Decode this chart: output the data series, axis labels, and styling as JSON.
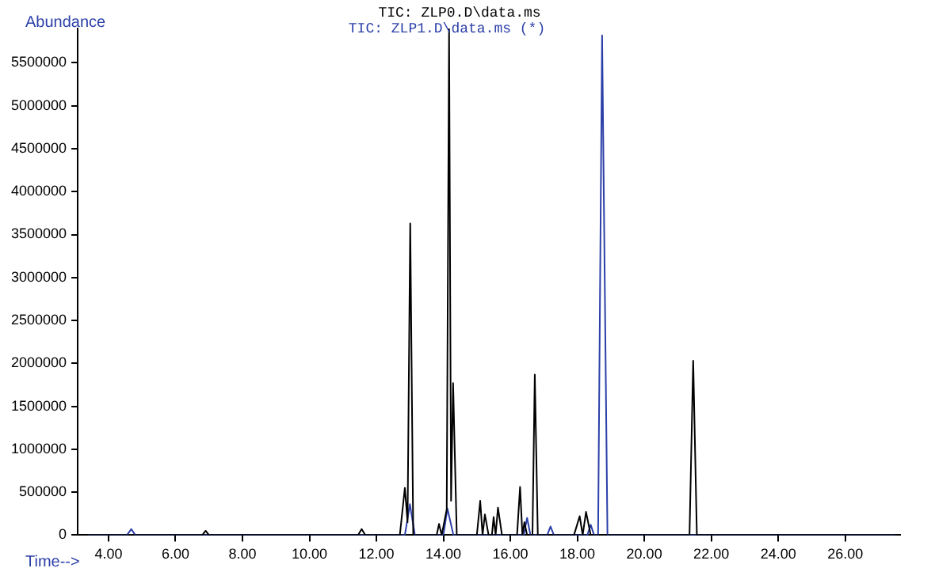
{
  "chart_data": {
    "type": "line",
    "xlabel": "Time-->",
    "ylabel": "Abundance",
    "legend": "top",
    "marker": "none",
    "line_style": "solid",
    "xlim": [
      3.08,
      27.64
    ],
    "ylim": [
      0,
      5900000
    ],
    "xticks": [
      {
        "value": 4,
        "label": "4.00"
      },
      {
        "value": 6,
        "label": "6.00"
      },
      {
        "value": 8,
        "label": "8.00"
      },
      {
        "value": 10,
        "label": "10.00"
      },
      {
        "value": 12,
        "label": "12.00"
      },
      {
        "value": 14,
        "label": "14.00"
      },
      {
        "value": 16,
        "label": "16.00"
      },
      {
        "value": 18,
        "label": "18.00"
      },
      {
        "value": 20,
        "label": "20.00"
      },
      {
        "value": 22,
        "label": "22.00"
      },
      {
        "value": 24,
        "label": "24.00"
      },
      {
        "value": 26,
        "label": "26.00"
      }
    ],
    "yticks": [
      0,
      500000,
      1000000,
      1500000,
      2000000,
      2500000,
      3000000,
      3500000,
      4000000,
      4500000,
      5000000,
      5500000
    ],
    "series": [
      {
        "name": "TIC: ZLP0.D\\data.ms",
        "color": "#000000",
        "x": [
          3.4,
          6.8,
          6.9,
          7.0,
          11.45,
          11.56,
          11.67,
          12.7,
          12.85,
          12.93,
          13.01,
          13.1,
          13.8,
          13.87,
          13.95,
          14.1,
          14.17,
          14.23,
          14.29,
          14.4,
          15.0,
          15.1,
          15.17,
          15.24,
          15.35,
          15.45,
          15.5,
          15.56,
          15.63,
          15.75,
          16.2,
          16.29,
          16.36,
          16.42,
          16.5,
          16.66,
          16.73,
          16.82,
          17.9,
          18.07,
          18.16,
          18.26,
          18.4,
          21.35,
          21.46,
          21.57,
          27.5
        ],
        "values": [
          0,
          0,
          50000,
          0,
          0,
          70000,
          0,
          0,
          550000,
          150000,
          3630000,
          0,
          0,
          130000,
          0,
          300000,
          5900000,
          400000,
          1770000,
          0,
          0,
          400000,
          0,
          240000,
          0,
          0,
          210000,
          0,
          320000,
          0,
          0,
          560000,
          0,
          150000,
          0,
          0,
          1870000,
          0,
          0,
          220000,
          0,
          270000,
          0,
          0,
          2030000,
          0,
          0
        ]
      },
      {
        "name": "TIC: ZLP1.D\\data.ms (*)",
        "color": "#2b3fa8",
        "x": [
          3.4,
          4.55,
          4.68,
          4.8,
          12.85,
          13.0,
          13.15,
          14.0,
          14.12,
          14.3,
          16.4,
          16.5,
          16.6,
          17.1,
          17.2,
          17.3,
          18.3,
          18.4,
          18.5,
          18.62,
          18.74,
          18.9,
          27.5
        ],
        "values": [
          0,
          0,
          70000,
          0,
          0,
          360000,
          0,
          0,
          310000,
          0,
          0,
          200000,
          0,
          0,
          100000,
          0,
          0,
          120000,
          0,
          0,
          5820000,
          0,
          0
        ]
      }
    ]
  }
}
